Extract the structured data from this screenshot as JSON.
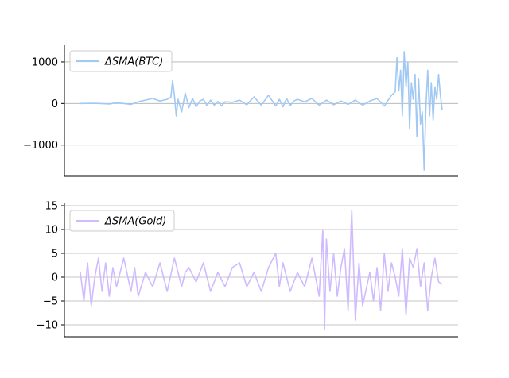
{
  "chart_data": [
    {
      "type": "line",
      "grid": "horizontal",
      "legend_position": "top-left",
      "ylim": [
        -1750,
        1400
      ],
      "yticks": [
        -1000,
        0,
        1000
      ],
      "ytick_labels": [
        "−1000",
        "0",
        "1000"
      ],
      "x_tick_labels": [],
      "series": [
        {
          "name": "ΔSMA(BTC)",
          "color": "#a1c9f4",
          "x": [
            0,
            0.04,
            0.08,
            0.1,
            0.14,
            0.16,
            0.18,
            0.2,
            0.22,
            0.24,
            0.25,
            0.255,
            0.26,
            0.265,
            0.27,
            0.28,
            0.29,
            0.3,
            0.31,
            0.32,
            0.33,
            0.34,
            0.35,
            0.36,
            0.37,
            0.38,
            0.39,
            0.4,
            0.42,
            0.44,
            0.46,
            0.48,
            0.5,
            0.52,
            0.54,
            0.55,
            0.56,
            0.57,
            0.58,
            0.59,
            0.6,
            0.62,
            0.64,
            0.66,
            0.68,
            0.7,
            0.72,
            0.74,
            0.76,
            0.78,
            0.8,
            0.82,
            0.84,
            0.86,
            0.87,
            0.875,
            0.88,
            0.885,
            0.89,
            0.895,
            0.9,
            0.905,
            0.91,
            0.915,
            0.92,
            0.925,
            0.93,
            0.935,
            0.94,
            0.945,
            0.95,
            0.955,
            0.96,
            0.965,
            0.97,
            0.975,
            0.98,
            0.985,
            0.99,
            0.995,
            1.0
          ],
          "values": [
            0,
            5,
            -10,
            20,
            -20,
            40,
            80,
            120,
            60,
            100,
            150,
            550,
            200,
            -300,
            100,
            -200,
            250,
            -100,
            120,
            -80,
            60,
            100,
            -50,
            80,
            -40,
            50,
            -60,
            40,
            30,
            80,
            -30,
            160,
            -40,
            200,
            -60,
            100,
            -80,
            120,
            -50,
            60,
            100,
            40,
            120,
            -40,
            80,
            -30,
            60,
            -20,
            80,
            -40,
            60,
            120,
            -60,
            200,
            280,
            1100,
            300,
            800,
            -300,
            1250,
            400,
            1000,
            -600,
            500,
            100,
            700,
            -800,
            600,
            -500,
            -200,
            -1600,
            -100,
            800,
            -300,
            500,
            -400,
            400,
            100,
            700,
            200,
            -150
          ]
        }
      ]
    },
    {
      "type": "line",
      "grid": "horizontal",
      "legend_position": "top-left",
      "ylim": [
        -12.5,
        15.5
      ],
      "yticks": [
        -10,
        -5,
        0,
        5,
        10,
        15
      ],
      "ytick_labels": [
        "−10",
        "−5",
        "0",
        "5",
        "10",
        "15"
      ],
      "x_tick_labels": [],
      "series": [
        {
          "name": "ΔSMA(Gold)",
          "color": "#d0bbff",
          "x": [
            0,
            0.01,
            0.02,
            0.03,
            0.04,
            0.05,
            0.06,
            0.07,
            0.08,
            0.09,
            0.1,
            0.12,
            0.14,
            0.15,
            0.16,
            0.18,
            0.2,
            0.22,
            0.24,
            0.26,
            0.28,
            0.29,
            0.3,
            0.32,
            0.34,
            0.36,
            0.38,
            0.4,
            0.42,
            0.44,
            0.46,
            0.48,
            0.5,
            0.52,
            0.54,
            0.55,
            0.56,
            0.58,
            0.6,
            0.62,
            0.64,
            0.66,
            0.67,
            0.675,
            0.68,
            0.69,
            0.7,
            0.71,
            0.72,
            0.73,
            0.74,
            0.75,
            0.76,
            0.77,
            0.78,
            0.8,
            0.81,
            0.82,
            0.83,
            0.84,
            0.85,
            0.86,
            0.87,
            0.88,
            0.89,
            0.9,
            0.91,
            0.92,
            0.93,
            0.94,
            0.95,
            0.96,
            0.97,
            0.98,
            0.99,
            1.0
          ],
          "values": [
            1,
            -5,
            3,
            -6,
            0,
            4,
            -3,
            3,
            -4,
            2,
            -2,
            4,
            -3,
            2,
            -4,
            1,
            -2,
            3,
            -3,
            4,
            -2,
            1,
            2,
            -1,
            3,
            -3,
            1,
            -2,
            2,
            3,
            -2,
            1,
            -3,
            2,
            5,
            -2,
            3,
            -3,
            1,
            -2,
            4,
            -4,
            10,
            -11,
            8,
            -3,
            5,
            -4,
            2,
            6,
            -7,
            14,
            -9,
            3,
            -6,
            1,
            -5,
            2,
            -7,
            5,
            -3,
            3,
            0,
            -4,
            6,
            -8,
            4,
            2,
            6,
            -2,
            3,
            -7,
            0,
            4,
            -1,
            -1.5
          ]
        }
      ]
    }
  ]
}
